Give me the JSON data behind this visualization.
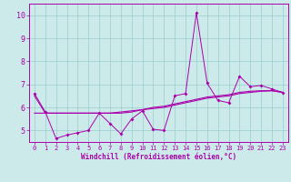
{
  "xlabel": "Windchill (Refroidissement éolien,°C)",
  "bg_color": "#cceaea",
  "line_color": "#aa00aa",
  "grid_color": "#99cccc",
  "spine_color": "#aa00aa",
  "xlim": [
    -0.5,
    23.5
  ],
  "ylim": [
    4.5,
    10.5
  ],
  "yticks": [
    5,
    6,
    7,
    8,
    9,
    10
  ],
  "xticks": [
    0,
    1,
    2,
    3,
    4,
    5,
    6,
    7,
    8,
    9,
    10,
    11,
    12,
    13,
    14,
    15,
    16,
    17,
    18,
    19,
    20,
    21,
    22,
    23
  ],
  "x": [
    0,
    1,
    2,
    3,
    4,
    5,
    6,
    7,
    8,
    9,
    10,
    11,
    12,
    13,
    14,
    15,
    16,
    17,
    18,
    19,
    20,
    21,
    22,
    23
  ],
  "y_raw": [
    6.6,
    5.8,
    4.65,
    4.8,
    4.9,
    5.0,
    5.75,
    5.3,
    4.85,
    5.5,
    5.85,
    5.05,
    5.0,
    6.5,
    6.6,
    10.1,
    7.05,
    6.3,
    6.2,
    7.35,
    6.9,
    6.95,
    6.8,
    6.65
  ],
  "y_smooth1": [
    5.75,
    5.75,
    5.75,
    5.75,
    5.75,
    5.75,
    5.75,
    5.75,
    5.8,
    5.85,
    5.9,
    5.95,
    6.0,
    6.1,
    6.2,
    6.3,
    6.4,
    6.45,
    6.5,
    6.6,
    6.65,
    6.7,
    6.72,
    6.65
  ],
  "y_smooth2": [
    6.5,
    5.75,
    5.75,
    5.75,
    5.75,
    5.75,
    5.75,
    5.75,
    5.75,
    5.8,
    5.9,
    6.0,
    6.05,
    6.15,
    6.25,
    6.35,
    6.45,
    6.5,
    6.55,
    6.65,
    6.7,
    6.72,
    6.73,
    6.65
  ]
}
